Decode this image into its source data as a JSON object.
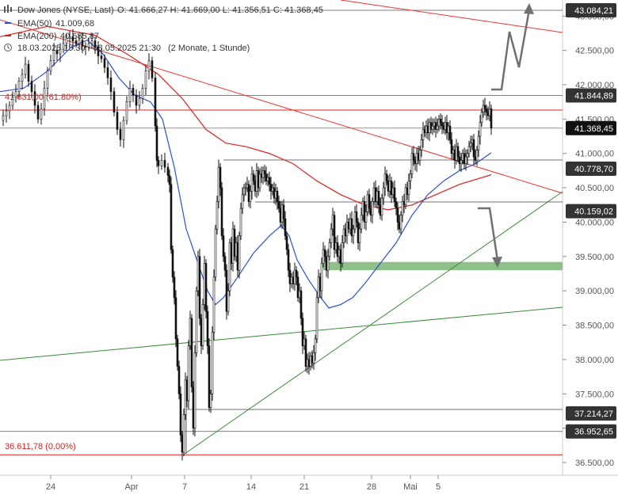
{
  "header": {
    "instrument": "Dow Jones (NYSE, Last)",
    "ohlc": "O: 41.666,27  H: 41.669,00  L: 41.356,51  C: 41.368,45",
    "ema50_label": "EMA(50)",
    "ema50_value": "41.009,68",
    "ema200_label": "EMA(200)",
    "ema200_value": "40.685,87",
    "period": "18.03.2025 15:30 - 08.05.2025 21:30",
    "interval": "(2 Monate, 1 Stunde)"
  },
  "colors": {
    "ema50": "#2b4fd8",
    "ema200": "#e02020",
    "trend_red": "#e33",
    "trend_green": "#3a8a3a",
    "zone": "#8fc08a",
    "candle": "#111111",
    "arrow": "#707070"
  },
  "fib_labels": {
    "fib618": "41.631,00 (61.80%)",
    "fib0": "36.611,78 (0.00%)"
  },
  "chart_data": {
    "type": "candlestick",
    "ylim": [
      36350,
      43250
    ],
    "y_ticks": [
      "36.500,00",
      "37.000,00",
      "37.500,00",
      "38.000,00",
      "38.500,00",
      "39.000,00",
      "39.500,00",
      "40.000,00",
      "40.500,00",
      "41.000,00",
      "41.500,00",
      "42.000,00",
      "42.500,00",
      "43.000,00"
    ],
    "y_tick_values": [
      36500,
      37000,
      37500,
      38000,
      38500,
      39000,
      39500,
      40000,
      40500,
      41000,
      41500,
      42000,
      42500,
      43000
    ],
    "x_ticks": [
      "24",
      "Apr",
      "7",
      "14",
      "21",
      "28",
      "Mai",
      "5"
    ],
    "level_tags": [
      {
        "label": "43.084,21",
        "value": 43084.21,
        "style": "dark"
      },
      {
        "label": "41.844,89",
        "value": 41844.89,
        "style": "dark"
      },
      {
        "label": "41.368,45",
        "value": 41368.45,
        "style": "black"
      },
      {
        "label": "40.778,70",
        "value": 40778.7,
        "style": "dark"
      },
      {
        "label": "40.159,02",
        "value": 40159.02,
        "style": "dark"
      },
      {
        "label": "37.214,27",
        "value": 37214.27,
        "style": "dark"
      },
      {
        "label": "36.952,65",
        "value": 36952.65,
        "style": "dark"
      }
    ],
    "support_zone": [
      39300,
      39420
    ],
    "fib_levels": [
      41631.0,
      36611.78
    ],
    "price_path": [
      [
        0,
        41480
      ],
      [
        4,
        41550
      ],
      [
        8,
        41620
      ],
      [
        12,
        41700
      ],
      [
        16,
        41820
      ],
      [
        20,
        41900
      ],
      [
        24,
        42050
      ],
      [
        28,
        42150
      ],
      [
        32,
        42300
      ],
      [
        36,
        42050
      ],
      [
        40,
        41900
      ],
      [
        44,
        41700
      ],
      [
        48,
        41500
      ],
      [
        52,
        41650
      ],
      [
        56,
        41950
      ],
      [
        60,
        42200
      ],
      [
        64,
        42350
      ],
      [
        68,
        42500
      ],
      [
        72,
        42450
      ],
      [
        76,
        42520
      ],
      [
        80,
        42600
      ],
      [
        84,
        42680
      ],
      [
        88,
        42700
      ],
      [
        92,
        42640
      ],
      [
        96,
        42600
      ],
      [
        100,
        42650
      ],
      [
        104,
        42560
      ],
      [
        108,
        42550
      ],
      [
        112,
        42600
      ],
      [
        116,
        42640
      ],
      [
        120,
        42550
      ],
      [
        124,
        42420
      ],
      [
        128,
        42380
      ],
      [
        132,
        42250
      ],
      [
        136,
        42100
      ],
      [
        140,
        41900
      ],
      [
        144,
        41600
      ],
      [
        148,
        41350
      ],
      [
        152,
        41200
      ],
      [
        156,
        41480
      ],
      [
        160,
        41750
      ],
      [
        164,
        41950
      ],
      [
        168,
        41850
      ],
      [
        172,
        41700
      ],
      [
        176,
        41800
      ],
      [
        180,
        41950
      ],
      [
        184,
        42200
      ],
      [
        188,
        42350
      ],
      [
        192,
        42100
      ],
      [
        196,
        41400
      ],
      [
        198,
        40900
      ],
      [
        200,
        40820
      ],
      [
        204,
        40900
      ],
      [
        208,
        40800
      ],
      [
        212,
        40680
      ],
      [
        214,
        40550
      ],
      [
        216,
        39600
      ],
      [
        218,
        39200
      ],
      [
        220,
        38900
      ],
      [
        222,
        38300
      ],
      [
        224,
        37900
      ],
      [
        226,
        37500
      ],
      [
        228,
        36900
      ],
      [
        230,
        36650
      ],
      [
        232,
        37200
      ],
      [
        234,
        37700
      ],
      [
        236,
        37400
      ],
      [
        238,
        38200
      ],
      [
        240,
        38600
      ],
      [
        242,
        37600
      ],
      [
        244,
        37000
      ],
      [
        246,
        38100
      ],
      [
        248,
        39000
      ],
      [
        250,
        39500
      ],
      [
        252,
        38600
      ],
      [
        254,
        38200
      ],
      [
        256,
        38800
      ],
      [
        258,
        39400
      ],
      [
        260,
        38700
      ],
      [
        262,
        38200
      ],
      [
        264,
        37300
      ],
      [
        266,
        37500
      ],
      [
        268,
        38400
      ],
      [
        270,
        39200
      ],
      [
        272,
        39900
      ],
      [
        274,
        40300
      ],
      [
        276,
        40800
      ],
      [
        278,
        40500
      ],
      [
        280,
        39800
      ],
      [
        282,
        39500
      ],
      [
        284,
        39300
      ],
      [
        286,
        38700
      ],
      [
        288,
        39000
      ],
      [
        290,
        39700
      ],
      [
        292,
        39400
      ],
      [
        294,
        39900
      ],
      [
        296,
        39500
      ],
      [
        298,
        39700
      ],
      [
        300,
        39300
      ],
      [
        302,
        39800
      ],
      [
        304,
        40200
      ],
      [
        306,
        40400
      ],
      [
        308,
        40500
      ],
      [
        310,
        40500
      ],
      [
        312,
        40550
      ],
      [
        314,
        40300
      ],
      [
        316,
        40450
      ],
      [
        318,
        40700
      ],
      [
        320,
        40600
      ],
      [
        322,
        40450
      ],
      [
        324,
        40750
      ],
      [
        326,
        40500
      ],
      [
        328,
        40700
      ],
      [
        330,
        40650
      ],
      [
        332,
        40750
      ],
      [
        334,
        40700
      ],
      [
        336,
        40600
      ],
      [
        338,
        40650
      ],
      [
        340,
        40550
      ],
      [
        342,
        40450
      ],
      [
        344,
        40500
      ],
      [
        346,
        40350
      ],
      [
        348,
        40450
      ],
      [
        350,
        40300
      ],
      [
        352,
        40200
      ],
      [
        354,
        40000
      ],
      [
        356,
        40250
      ],
      [
        358,
        40050
      ],
      [
        360,
        39800
      ],
      [
        362,
        39600
      ],
      [
        364,
        39300
      ],
      [
        366,
        39100
      ],
      [
        368,
        39200
      ],
      [
        370,
        39100
      ],
      [
        372,
        39300
      ],
      [
        374,
        39200
      ],
      [
        376,
        38900
      ],
      [
        378,
        39000
      ],
      [
        380,
        38600
      ],
      [
        382,
        38200
      ],
      [
        384,
        38300
      ],
      [
        386,
        37900
      ],
      [
        388,
        38000
      ],
      [
        390,
        37900
      ],
      [
        392,
        38050
      ],
      [
        394,
        37950
      ],
      [
        396,
        38100
      ],
      [
        398,
        38300
      ],
      [
        400,
        38900
      ],
      [
        402,
        39200
      ],
      [
        404,
        39000
      ],
      [
        406,
        39400
      ],
      [
        408,
        39600
      ],
      [
        410,
        39500
      ],
      [
        412,
        39300
      ],
      [
        414,
        39500
      ],
      [
        416,
        39700
      ],
      [
        418,
        39900
      ],
      [
        420,
        40100
      ],
      [
        422,
        39600
      ],
      [
        424,
        39700
      ],
      [
        426,
        39500
      ],
      [
        428,
        39600
      ],
      [
        430,
        39400
      ],
      [
        432,
        39700
      ],
      [
        434,
        39900
      ],
      [
        436,
        39800
      ],
      [
        438,
        40000
      ],
      [
        440,
        39900
      ],
      [
        442,
        40050
      ],
      [
        444,
        39800
      ],
      [
        446,
        39900
      ],
      [
        448,
        40150
      ],
      [
        450,
        40000
      ],
      [
        452,
        39700
      ],
      [
        454,
        39900
      ],
      [
        456,
        40100
      ],
      [
        458,
        40300
      ],
      [
        460,
        40000
      ],
      [
        462,
        40150
      ],
      [
        464,
        40400
      ],
      [
        466,
        40200
      ],
      [
        468,
        40100
      ],
      [
        470,
        40300
      ],
      [
        472,
        40500
      ],
      [
        474,
        40300
      ],
      [
        476,
        40450
      ],
      [
        478,
        40250
      ],
      [
        480,
        40100
      ],
      [
        482,
        40350
      ],
      [
        484,
        40500
      ],
      [
        486,
        40700
      ],
      [
        488,
        40600
      ],
      [
        490,
        40450
      ],
      [
        492,
        40600
      ],
      [
        494,
        40400
      ],
      [
        496,
        40500
      ],
      [
        498,
        40300
      ],
      [
        500,
        40200
      ],
      [
        502,
        40000
      ],
      [
        504,
        39900
      ],
      [
        506,
        40100
      ],
      [
        508,
        40300
      ],
      [
        510,
        40250
      ],
      [
        512,
        40500
      ],
      [
        514,
        40400
      ],
      [
        516,
        40600
      ],
      [
        518,
        40700
      ],
      [
        520,
        41000
      ],
      [
        522,
        40900
      ],
      [
        524,
        40850
      ],
      [
        526,
        41000
      ],
      [
        528,
        40900
      ],
      [
        530,
        41050
      ],
      [
        532,
        41200
      ],
      [
        534,
        41350
      ],
      [
        536,
        41300
      ],
      [
        538,
        41400
      ],
      [
        540,
        41300
      ],
      [
        542,
        41450
      ],
      [
        544,
        41350
      ],
      [
        546,
        41400
      ],
      [
        548,
        41450
      ],
      [
        550,
        41350
      ],
      [
        552,
        41400
      ],
      [
        554,
        41500
      ],
      [
        556,
        41450
      ],
      [
        558,
        41400
      ],
      [
        560,
        41350
      ],
      [
        562,
        41450
      ],
      [
        564,
        41300
      ],
      [
        566,
        41400
      ],
      [
        568,
        41200
      ],
      [
        570,
        41000
      ],
      [
        572,
        41050
      ],
      [
        574,
        40900
      ],
      [
        576,
        41100
      ],
      [
        578,
        40950
      ],
      [
        580,
        40850
      ],
      [
        582,
        40900
      ],
      [
        584,
        41000
      ],
      [
        586,
        40850
      ],
      [
        588,
        40950
      ],
      [
        590,
        41000
      ],
      [
        592,
        41100
      ],
      [
        594,
        41150
      ],
      [
        596,
        41200
      ],
      [
        598,
        40950
      ],
      [
        600,
        40900
      ],
      [
        602,
        41050
      ],
      [
        604,
        41250
      ],
      [
        606,
        41450
      ],
      [
        608,
        41600
      ],
      [
        610,
        41700
      ],
      [
        612,
        41650
      ],
      [
        614,
        41600
      ],
      [
        616,
        41550
      ],
      [
        618,
        41650
      ],
      [
        620,
        41370
      ]
    ],
    "ema50_path": [
      [
        0,
        41900
      ],
      [
        30,
        41950
      ],
      [
        60,
        42200
      ],
      [
        90,
        42550
      ],
      [
        110,
        42650
      ],
      [
        130,
        42450
      ],
      [
        150,
        42100
      ],
      [
        170,
        41850
      ],
      [
        190,
        41750
      ],
      [
        205,
        41500
      ],
      [
        220,
        40800
      ],
      [
        235,
        39900
      ],
      [
        250,
        39400
      ],
      [
        262,
        39000
      ],
      [
        272,
        38800
      ],
      [
        282,
        38900
      ],
      [
        300,
        39200
      ],
      [
        320,
        39550
      ],
      [
        340,
        39800
      ],
      [
        355,
        39950
      ],
      [
        365,
        39800
      ],
      [
        375,
        39450
      ],
      [
        390,
        39150
      ],
      [
        405,
        38900
      ],
      [
        415,
        38750
      ],
      [
        430,
        38800
      ],
      [
        445,
        38900
      ],
      [
        460,
        39100
      ],
      [
        480,
        39400
      ],
      [
        500,
        39700
      ],
      [
        520,
        40100
      ],
      [
        540,
        40400
      ],
      [
        560,
        40600
      ],
      [
        580,
        40750
      ],
      [
        600,
        40850
      ],
      [
        620,
        41010
      ]
    ],
    "ema200_path": [
      [
        0,
        42700
      ],
      [
        60,
        42850
      ],
      [
        120,
        42720
      ],
      [
        160,
        42450
      ],
      [
        200,
        42150
      ],
      [
        230,
        41800
      ],
      [
        260,
        41350
      ],
      [
        285,
        41150
      ],
      [
        310,
        41100
      ],
      [
        340,
        41000
      ],
      [
        370,
        40850
      ],
      [
        400,
        40600
      ],
      [
        430,
        40400
      ],
      [
        460,
        40250
      ],
      [
        490,
        40180
      ],
      [
        520,
        40250
      ],
      [
        550,
        40400
      ],
      [
        580,
        40550
      ],
      [
        620,
        40690
      ]
    ]
  }
}
